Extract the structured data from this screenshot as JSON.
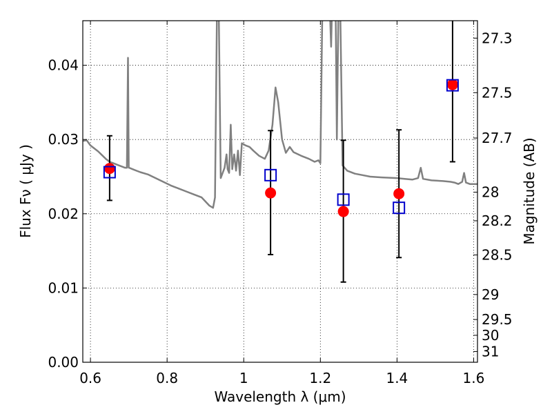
{
  "chart_data": {
    "type": "scatter",
    "xlabel": "Wavelength  λ (μm)",
    "ylabel": "Flux  Fν  ( μJy )",
    "ylabel_right": "Magnitude (AB)",
    "xlim": [
      0.58,
      1.61
    ],
    "ylim": [
      0.0,
      0.046
    ],
    "grid": true,
    "x_ticks": [
      {
        "value": 0.6,
        "label": "0.6"
      },
      {
        "value": 0.8,
        "label": "0.8"
      },
      {
        "value": 1.0,
        "label": "1"
      },
      {
        "value": 1.2,
        "label": "1.2"
      },
      {
        "value": 1.4,
        "label": "1.4"
      },
      {
        "value": 1.6,
        "label": "1.6"
      }
    ],
    "y_ticks": [
      {
        "value": 0.0,
        "label": "0.00"
      },
      {
        "value": 0.01,
        "label": "0.01"
      },
      {
        "value": 0.02,
        "label": "0.02"
      },
      {
        "value": 0.03,
        "label": "0.03"
      },
      {
        "value": 0.04,
        "label": "0.04"
      }
    ],
    "right_ticks": [
      {
        "mag": 27.3,
        "label": "27.3"
      },
      {
        "mag": 27.5,
        "label": "27.5"
      },
      {
        "mag": 27.7,
        "label": "27.7"
      },
      {
        "mag": 28.0,
        "label": "28"
      },
      {
        "mag": 28.2,
        "label": "28.2"
      },
      {
        "mag": 28.5,
        "label": "28.5"
      },
      {
        "mag": 29.0,
        "label": "29"
      },
      {
        "mag": 29.5,
        "label": "29.5"
      },
      {
        "mag": 30.0,
        "label": "30"
      },
      {
        "mag": 31.0,
        "label": "31"
      }
    ],
    "observed": {
      "color": "#ff0000",
      "points": [
        {
          "x": 0.65,
          "y": 0.0261,
          "yerr_low": 0.0218,
          "yerr_high": 0.0305
        },
        {
          "x": 1.07,
          "y": 0.0228,
          "yerr_low": 0.0145,
          "yerr_high": 0.0312
        },
        {
          "x": 1.26,
          "y": 0.0203,
          "yerr_low": 0.0108,
          "yerr_high": 0.0299
        },
        {
          "x": 1.405,
          "y": 0.0227,
          "yerr_low": 0.0141,
          "yerr_high": 0.0313
        },
        {
          "x": 1.545,
          "y": 0.0374,
          "yerr_low": 0.027,
          "yerr_high": 0.048
        }
      ]
    },
    "model_photometry": {
      "color": "#0000cc",
      "points": [
        {
          "x": 0.65,
          "y": 0.0256
        },
        {
          "x": 1.07,
          "y": 0.0252
        },
        {
          "x": 1.26,
          "y": 0.0219
        },
        {
          "x": 1.405,
          "y": 0.0208
        },
        {
          "x": 1.545,
          "y": 0.0373
        }
      ]
    },
    "model_spectrum": {
      "color": "#808080",
      "points": [
        [
          0.58,
          0.0298
        ],
        [
          0.59,
          0.0299
        ],
        [
          0.6,
          0.0292
        ],
        [
          0.61,
          0.0288
        ],
        [
          0.62,
          0.0284
        ],
        [
          0.63,
          0.0279
        ],
        [
          0.64,
          0.0274
        ],
        [
          0.65,
          0.027
        ],
        [
          0.66,
          0.0268
        ],
        [
          0.67,
          0.0266
        ],
        [
          0.68,
          0.0264
        ],
        [
          0.69,
          0.0262
        ],
        [
          0.695,
          0.0262
        ],
        [
          0.698,
          0.041
        ],
        [
          0.701,
          0.0262
        ],
        [
          0.7,
          0.0262
        ],
        [
          0.71,
          0.026
        ],
        [
          0.72,
          0.0258
        ],
        [
          0.73,
          0.0256
        ],
        [
          0.75,
          0.0253
        ],
        [
          0.77,
          0.0248
        ],
        [
          0.79,
          0.0243
        ],
        [
          0.81,
          0.0238
        ],
        [
          0.83,
          0.0234
        ],
        [
          0.85,
          0.023
        ],
        [
          0.87,
          0.0226
        ],
        [
          0.89,
          0.0222
        ],
        [
          0.91,
          0.0211
        ],
        [
          0.92,
          0.0208
        ],
        [
          0.925,
          0.0222
        ],
        [
          0.93,
          0.047
        ],
        [
          0.935,
          0.047
        ],
        [
          0.94,
          0.0248
        ],
        [
          0.95,
          0.0262
        ],
        [
          0.955,
          0.028
        ],
        [
          0.958,
          0.026
        ],
        [
          0.962,
          0.0255
        ],
        [
          0.966,
          0.032
        ],
        [
          0.97,
          0.026
        ],
        [
          0.975,
          0.028
        ],
        [
          0.98,
          0.0258
        ],
        [
          0.985,
          0.0285
        ],
        [
          0.99,
          0.0252
        ],
        [
          0.995,
          0.0295
        ],
        [
          1.005,
          0.0292
        ],
        [
          1.015,
          0.029
        ],
        [
          1.025,
          0.0285
        ],
        [
          1.04,
          0.0278
        ],
        [
          1.055,
          0.0274
        ],
        [
          1.065,
          0.0285
        ],
        [
          1.075,
          0.032
        ],
        [
          1.083,
          0.037
        ],
        [
          1.09,
          0.035
        ],
        [
          1.1,
          0.03
        ],
        [
          1.11,
          0.0282
        ],
        [
          1.12,
          0.029
        ],
        [
          1.13,
          0.0283
        ],
        [
          1.15,
          0.0278
        ],
        [
          1.17,
          0.0274
        ],
        [
          1.185,
          0.027
        ],
        [
          1.195,
          0.0272
        ],
        [
          1.2,
          0.0268
        ],
        [
          1.205,
          0.047
        ],
        [
          1.225,
          0.047
        ],
        [
          1.228,
          0.0425
        ],
        [
          1.23,
          0.047
        ],
        [
          1.24,
          0.047
        ],
        [
          1.243,
          0.03
        ],
        [
          1.247,
          0.047
        ],
        [
          1.252,
          0.047
        ],
        [
          1.258,
          0.0265
        ],
        [
          1.27,
          0.0258
        ],
        [
          1.29,
          0.0254
        ],
        [
          1.31,
          0.0252
        ],
        [
          1.33,
          0.025
        ],
        [
          1.36,
          0.0249
        ],
        [
          1.4,
          0.0248
        ],
        [
          1.42,
          0.0247
        ],
        [
          1.44,
          0.0246
        ],
        [
          1.455,
          0.0248
        ],
        [
          1.462,
          0.0262
        ],
        [
          1.468,
          0.0247
        ],
        [
          1.49,
          0.0245
        ],
        [
          1.52,
          0.0244
        ],
        [
          1.54,
          0.0243
        ],
        [
          1.55,
          0.0242
        ],
        [
          1.56,
          0.024
        ],
        [
          1.57,
          0.0243
        ],
        [
          1.575,
          0.0255
        ],
        [
          1.58,
          0.0242
        ],
        [
          1.59,
          0.024
        ],
        [
          1.61,
          0.024
        ]
      ]
    }
  }
}
